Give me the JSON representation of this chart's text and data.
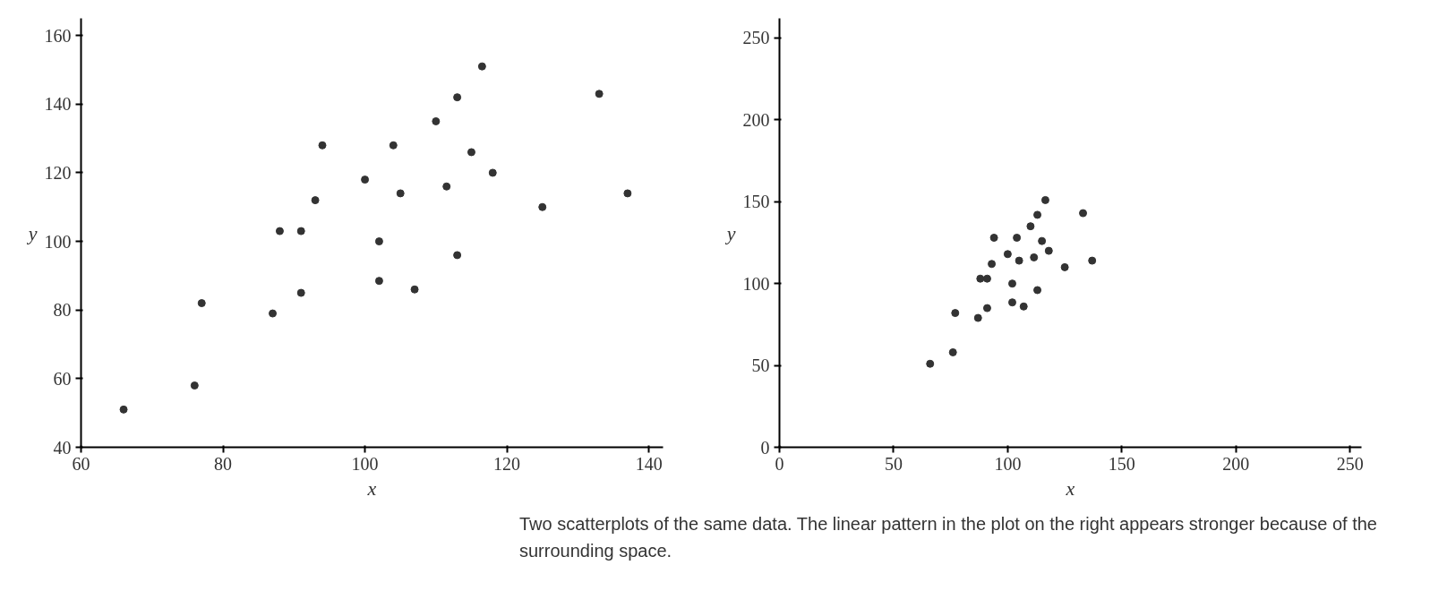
{
  "chart_data": [
    {
      "type": "scatter",
      "xlabel": "x",
      "ylabel": "y",
      "marker": "circle",
      "grid": false,
      "x": [
        66,
        76,
        77,
        87,
        88,
        91,
        91,
        93,
        94,
        100,
        116.5,
        113,
        133,
        110,
        104,
        115,
        118,
        105,
        111.5,
        137,
        125,
        102,
        113,
        102,
        107
      ],
      "values": [
        51,
        58,
        82,
        79,
        103,
        103,
        85,
        112,
        128,
        118,
        151,
        142,
        143,
        135,
        128,
        126,
        120,
        114,
        116,
        114,
        110,
        100,
        96,
        88.5,
        86
      ],
      "color": "#333333",
      "xlim": [
        60,
        142
      ],
      "ylim": [
        40,
        165
      ],
      "xticks": [
        60,
        80,
        100,
        120,
        140
      ],
      "yticks": [
        40,
        60,
        80,
        100,
        120,
        140,
        160
      ]
    },
    {
      "type": "scatter",
      "xlabel": "x",
      "ylabel": "y",
      "marker": "circle",
      "grid": false,
      "x": [
        66,
        76,
        77,
        87,
        88,
        91,
        91,
        93,
        94,
        100,
        116.5,
        113,
        133,
        110,
        104,
        115,
        118,
        105,
        111.5,
        137,
        125,
        102,
        113,
        102,
        107
      ],
      "values": [
        51,
        58,
        82,
        79,
        103,
        103,
        85,
        112,
        128,
        118,
        151,
        142,
        143,
        135,
        128,
        126,
        120,
        114,
        116,
        114,
        110,
        100,
        96,
        88.5,
        86
      ],
      "color": "#333333",
      "xlim": [
        0,
        255
      ],
      "ylim": [
        0,
        262
      ],
      "xticks": [
        0,
        50,
        100,
        150,
        200,
        250
      ],
      "yticks": [
        0,
        50,
        100,
        150,
        200,
        250
      ],
      "annotations": [
        "Two scatterplots of the same data. The linear pattern in the plot on the right appears stronger because of the surrounding space."
      ]
    }
  ]
}
